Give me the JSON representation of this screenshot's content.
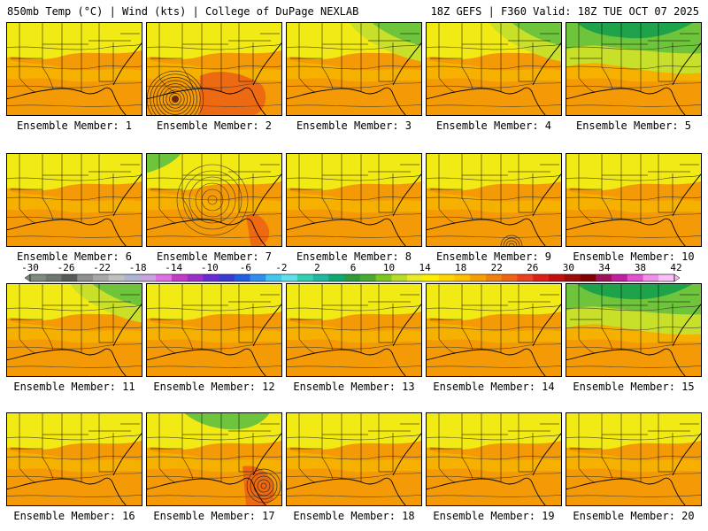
{
  "header": {
    "left": "850mb Temp (°C) | Wind (kts) | College of DuPage NEXLAB",
    "right": "18Z GEFS | F360 Valid: 18Z TUE OCT 07 2025"
  },
  "panels": [
    {
      "label": "Ensemble Member: 1",
      "anomaly": "none"
    },
    {
      "label": "Ensemble Member: 2",
      "anomaly": "strong-low-western-gulf"
    },
    {
      "label": "Ensemble Member: 3",
      "anomaly": "cool-northeast"
    },
    {
      "label": "Ensemble Member: 4",
      "anomaly": "cool-northeast"
    },
    {
      "label": "Ensemble Member: 5",
      "anomaly": "broad-cool-north"
    },
    {
      "label": "Ensemble Member: 6",
      "anomaly": "none"
    },
    {
      "label": "Ensemble Member: 7",
      "anomaly": "low-gulf-coast"
    },
    {
      "label": "Ensemble Member: 8",
      "anomaly": "none"
    },
    {
      "label": "Ensemble Member: 9",
      "anomaly": "low-southern-gulf"
    },
    {
      "label": "Ensemble Member: 10",
      "anomaly": "none"
    },
    {
      "label": "Ensemble Member: 11",
      "anomaly": "cool-northeast"
    },
    {
      "label": "Ensemble Member: 12",
      "anomaly": "none"
    },
    {
      "label": "Ensemble Member: 13",
      "anomaly": "none"
    },
    {
      "label": "Ensemble Member: 14",
      "anomaly": "none"
    },
    {
      "label": "Ensemble Member: 15",
      "anomaly": "broad-cool-north"
    },
    {
      "label": "Ensemble Member: 16",
      "anomaly": "none"
    },
    {
      "label": "Ensemble Member: 17",
      "anomaly": "low-florida"
    },
    {
      "label": "Ensemble Member: 18",
      "anomaly": "none"
    },
    {
      "label": "Ensemble Member: 19",
      "anomaly": "none"
    },
    {
      "label": "Ensemble Member: 20",
      "anomaly": "none"
    }
  ],
  "colorbar": {
    "ticks": [
      "-30",
      "-26",
      "-22",
      "-18",
      "-14",
      "-10",
      "-6",
      "-2",
      "2",
      "6",
      "10",
      "14",
      "18",
      "22",
      "26",
      "30",
      "34",
      "38",
      "42"
    ],
    "colors": [
      "#7f8a7f",
      "#6e766e",
      "#555b55",
      "#8f8f8f",
      "#a8a8a8",
      "#c0c0c0",
      "#aab6d2",
      "#c8a4dc",
      "#e070e0",
      "#c33cc8",
      "#9b30c8",
      "#6a2cd4",
      "#3a3ad4",
      "#2060e0",
      "#2f8ff0",
      "#40c8f0",
      "#60e0e8",
      "#30d0b0",
      "#20b8a0",
      "#10a870",
      "#2e9a3a",
      "#48aa30",
      "#7cc820",
      "#b8dc28",
      "#e8ec28",
      "#ffee00",
      "#ffd400",
      "#ffbe00",
      "#f5a000",
      "#f08010",
      "#ec6418",
      "#e84020",
      "#dc2018",
      "#c01010",
      "#9a0c0c",
      "#800000",
      "#a0105a",
      "#c020a0",
      "#e050d0",
      "#f090e8",
      "#f8c0f4"
    ]
  },
  "field_colors": {
    "cool_dark_green": "#1fa34a",
    "cool_green": "#6ec43a",
    "yellow_green": "#c8e029",
    "yellow": "#f2ea14",
    "light_orange": "#f6b400",
    "orange": "#f39a06",
    "hot_orange": "#ee6a12"
  }
}
